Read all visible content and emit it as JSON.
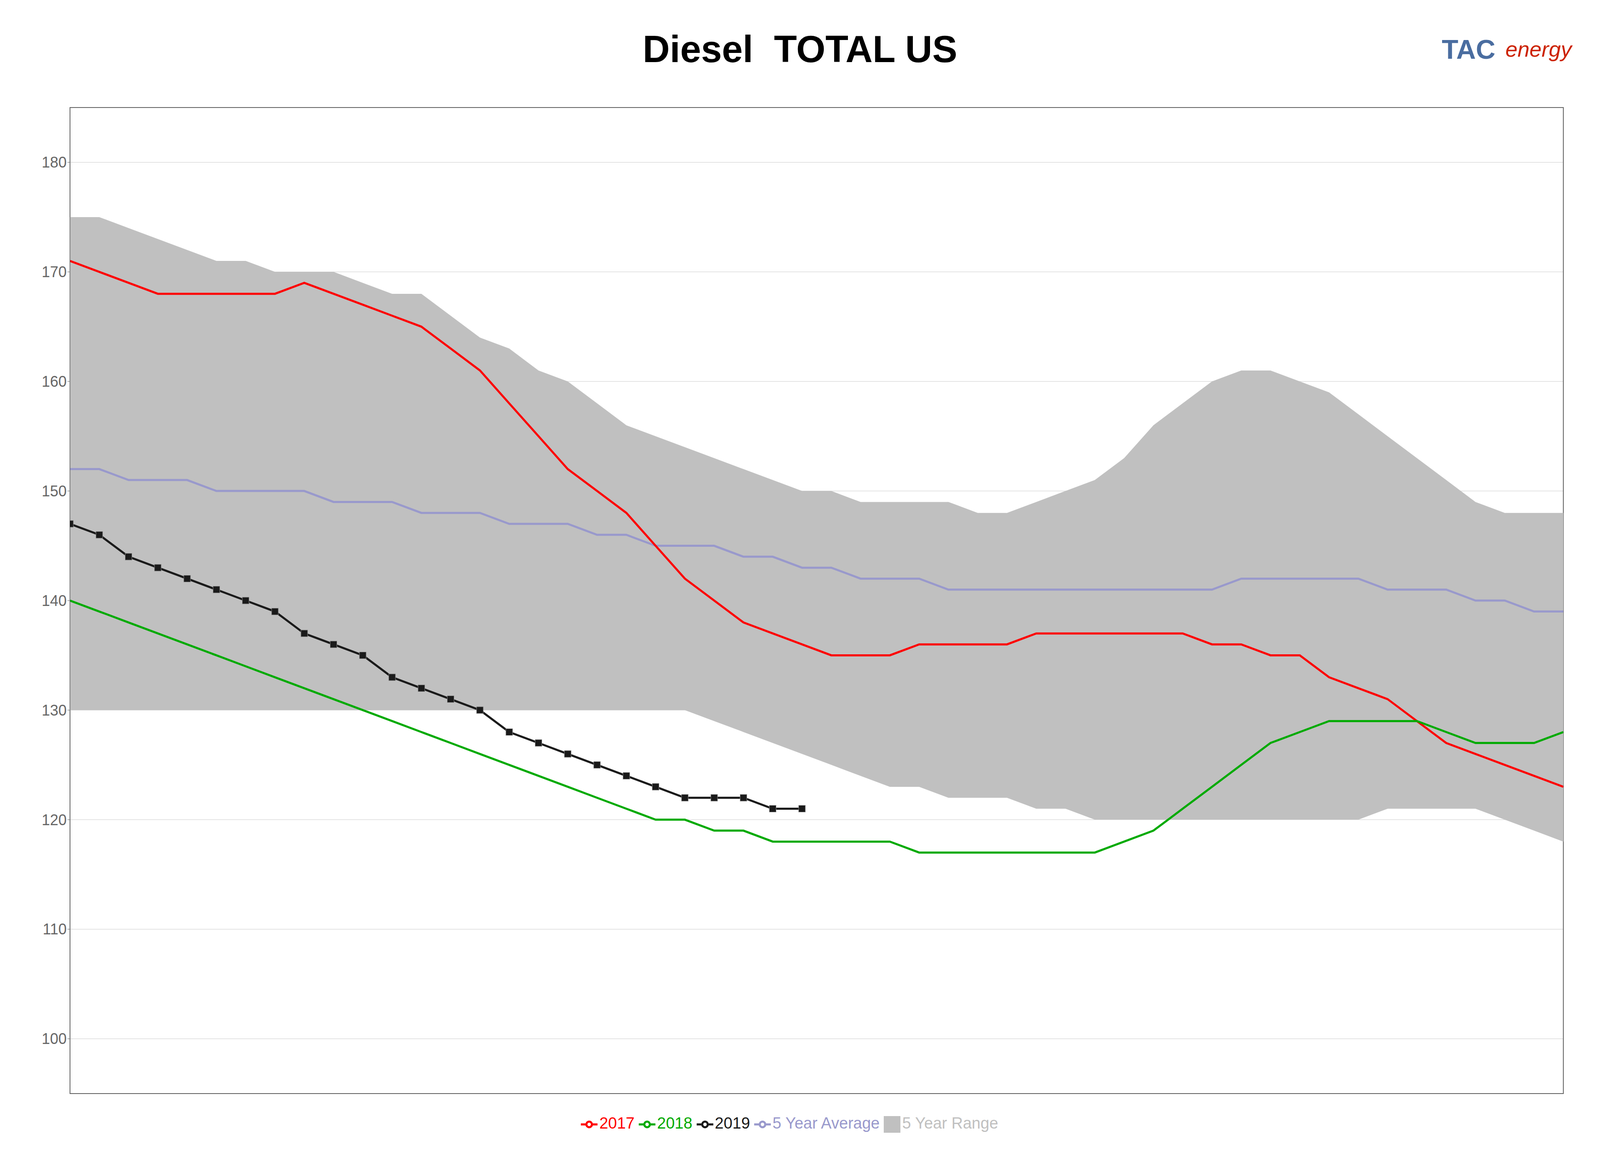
{
  "chart_data": {
    "type": "line",
    "title": "Diesel  TOTAL US",
    "annotations": [
      "TAC",
      "energy"
    ],
    "x": [
      0,
      1,
      2,
      3,
      4,
      5,
      6,
      7,
      8,
      9,
      10,
      11,
      12,
      13,
      14,
      15,
      16,
      17,
      18,
      19,
      20,
      21,
      22,
      23,
      24,
      25,
      26,
      27,
      28,
      29,
      30,
      31,
      32,
      33,
      34,
      35,
      36,
      37,
      38,
      39,
      40,
      41,
      42,
      43,
      44,
      45,
      46,
      47,
      48,
      49,
      50,
      51
    ],
    "xlim": [
      0,
      51
    ],
    "ylim": [
      95,
      185
    ],
    "yticks": [
      100,
      110,
      120,
      130,
      140,
      150,
      160,
      170,
      180
    ],
    "grid": true,
    "legend": "bottom",
    "tick_labels": "y",
    "series": [
      {
        "name": "5 Year Range",
        "type": "range",
        "color": "#c0c0c0",
        "lower": [
          130,
          130,
          130,
          130,
          130,
          130,
          130,
          130,
          130,
          130,
          130,
          130,
          130,
          130,
          130,
          130,
          130,
          130,
          130,
          130,
          130,
          130,
          129,
          128,
          127,
          126,
          125,
          124,
          123,
          123,
          122,
          122,
          122,
          121,
          121,
          120,
          120,
          120,
          120,
          120,
          120,
          120,
          120,
          120,
          120,
          121,
          121,
          121,
          121,
          120,
          119,
          118
        ],
        "upper": [
          175,
          175,
          174,
          173,
          172,
          171,
          171,
          170,
          170,
          170,
          169,
          168,
          168,
          166,
          164,
          163,
          161,
          160,
          158,
          156,
          155,
          154,
          153,
          152,
          151,
          150,
          150,
          149,
          149,
          149,
          149,
          148,
          148,
          149,
          150,
          151,
          153,
          156,
          158,
          160,
          161,
          161,
          160,
          159,
          157,
          155,
          153,
          151,
          149,
          148,
          148,
          148
        ]
      },
      {
        "name": "5 Year Average",
        "type": "line",
        "color": "#9999cc",
        "values": [
          152,
          152,
          151,
          151,
          151,
          150,
          150,
          150,
          150,
          149,
          149,
          149,
          148,
          148,
          148,
          147,
          147,
          147,
          146,
          146,
          145,
          145,
          145,
          144,
          144,
          143,
          143,
          142,
          142,
          142,
          141,
          141,
          141,
          141,
          141,
          141,
          141,
          141,
          141,
          141,
          142,
          142,
          142,
          142,
          142,
          141,
          141,
          141,
          140,
          140,
          139,
          139
        ]
      },
      {
        "name": "2017",
        "type": "line",
        "color": "#ff0000",
        "values": [
          171,
          170,
          169,
          168,
          168,
          168,
          168,
          168,
          169,
          168,
          167,
          166,
          165,
          163,
          161,
          158,
          155,
          152,
          150,
          148,
          145,
          142,
          140,
          138,
          137,
          136,
          135,
          135,
          135,
          136,
          136,
          136,
          136,
          137,
          137,
          137,
          137,
          137,
          137,
          136,
          136,
          135,
          135,
          133,
          132,
          131,
          129,
          127,
          126,
          125,
          124,
          123
        ]
      },
      {
        "name": "2018",
        "type": "line",
        "color": "#00aa00",
        "values": [
          140,
          139,
          138,
          137,
          136,
          135,
          134,
          133,
          132,
          131,
          130,
          129,
          128,
          127,
          126,
          125,
          124,
          123,
          122,
          121,
          120,
          120,
          119,
          119,
          118,
          118,
          118,
          118,
          118,
          117,
          117,
          117,
          117,
          117,
          117,
          117,
          118,
          119,
          121,
          123,
          125,
          127,
          128,
          129,
          129,
          129,
          129,
          128,
          127,
          127,
          127,
          128
        ]
      },
      {
        "name": "2019",
        "type": "line",
        "color": "#1a1a1a",
        "marker": "square",
        "x": [
          0,
          1,
          2,
          3,
          4,
          5,
          6,
          7,
          8,
          9,
          10,
          11,
          12,
          13,
          14,
          15,
          16,
          17,
          18,
          19,
          20,
          21,
          22,
          23,
          24,
          25
        ],
        "values": [
          147,
          146,
          144,
          143,
          142,
          141,
          140,
          139,
          137,
          136,
          135,
          133,
          132,
          131,
          130,
          128,
          127,
          126,
          125,
          124,
          123,
          122,
          122,
          122,
          121,
          121
        ]
      }
    ]
  }
}
